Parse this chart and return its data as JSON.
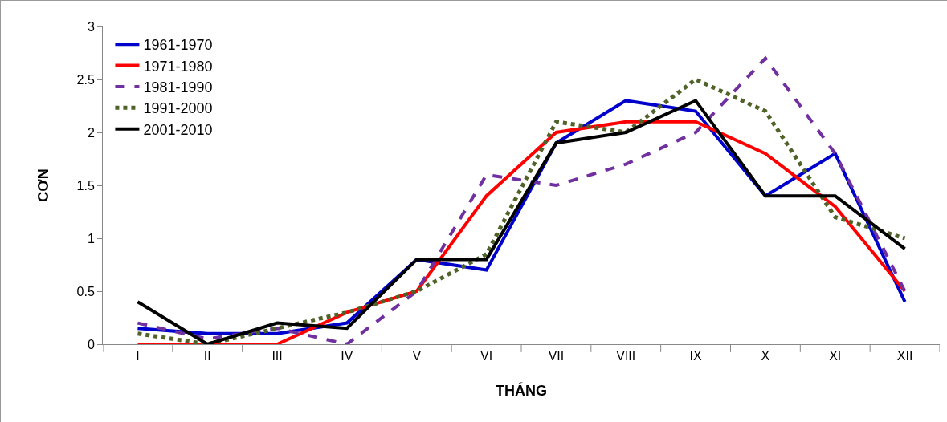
{
  "chart_data": {
    "type": "line",
    "xlabel": "THÁNG",
    "ylabel": "CƠN",
    "categories": [
      "I",
      "II",
      "III",
      "IV",
      "V",
      "VI",
      "VII",
      "VIII",
      "IX",
      "X",
      "XI",
      "XII"
    ],
    "series": [
      {
        "name": "1961-1970",
        "color": "#0000cc",
        "line_style": "solid",
        "values": [
          0.15,
          0.1,
          0.1,
          0.2,
          0.8,
          0.7,
          1.9,
          2.3,
          2.2,
          1.4,
          1.8,
          0.4
        ]
      },
      {
        "name": "1971-1980",
        "color": "#ff0000",
        "line_style": "solid",
        "values": [
          0,
          0,
          0,
          0.3,
          0.5,
          1.4,
          2.0,
          2.1,
          2.1,
          1.8,
          1.3,
          0.5
        ]
      },
      {
        "name": "1981-1990",
        "color": "#7030a0",
        "line_style": "dashed",
        "values": [
          0.2,
          0.05,
          0.15,
          0,
          0.5,
          1.6,
          1.5,
          1.7,
          2.0,
          2.7,
          1.8,
          0.5
        ]
      },
      {
        "name": "1991-2000",
        "color": "#4f6228",
        "line_style": "dotted",
        "values": [
          0.1,
          0,
          0.15,
          0.3,
          0.5,
          0.85,
          2.1,
          2.0,
          2.5,
          2.2,
          1.2,
          1.0
        ]
      },
      {
        "name": "2001-2010",
        "color": "#000000",
        "line_style": "solid",
        "values": [
          0.4,
          0,
          0.2,
          0.15,
          0.8,
          0.8,
          1.9,
          2.0,
          2.3,
          1.4,
          1.4,
          0.9
        ]
      }
    ],
    "ylim": [
      0,
      3
    ],
    "yticks": [
      0,
      0.5,
      1,
      1.5,
      2,
      2.5,
      3
    ],
    "grid": false,
    "legend": "top left",
    "marker": "none"
  }
}
